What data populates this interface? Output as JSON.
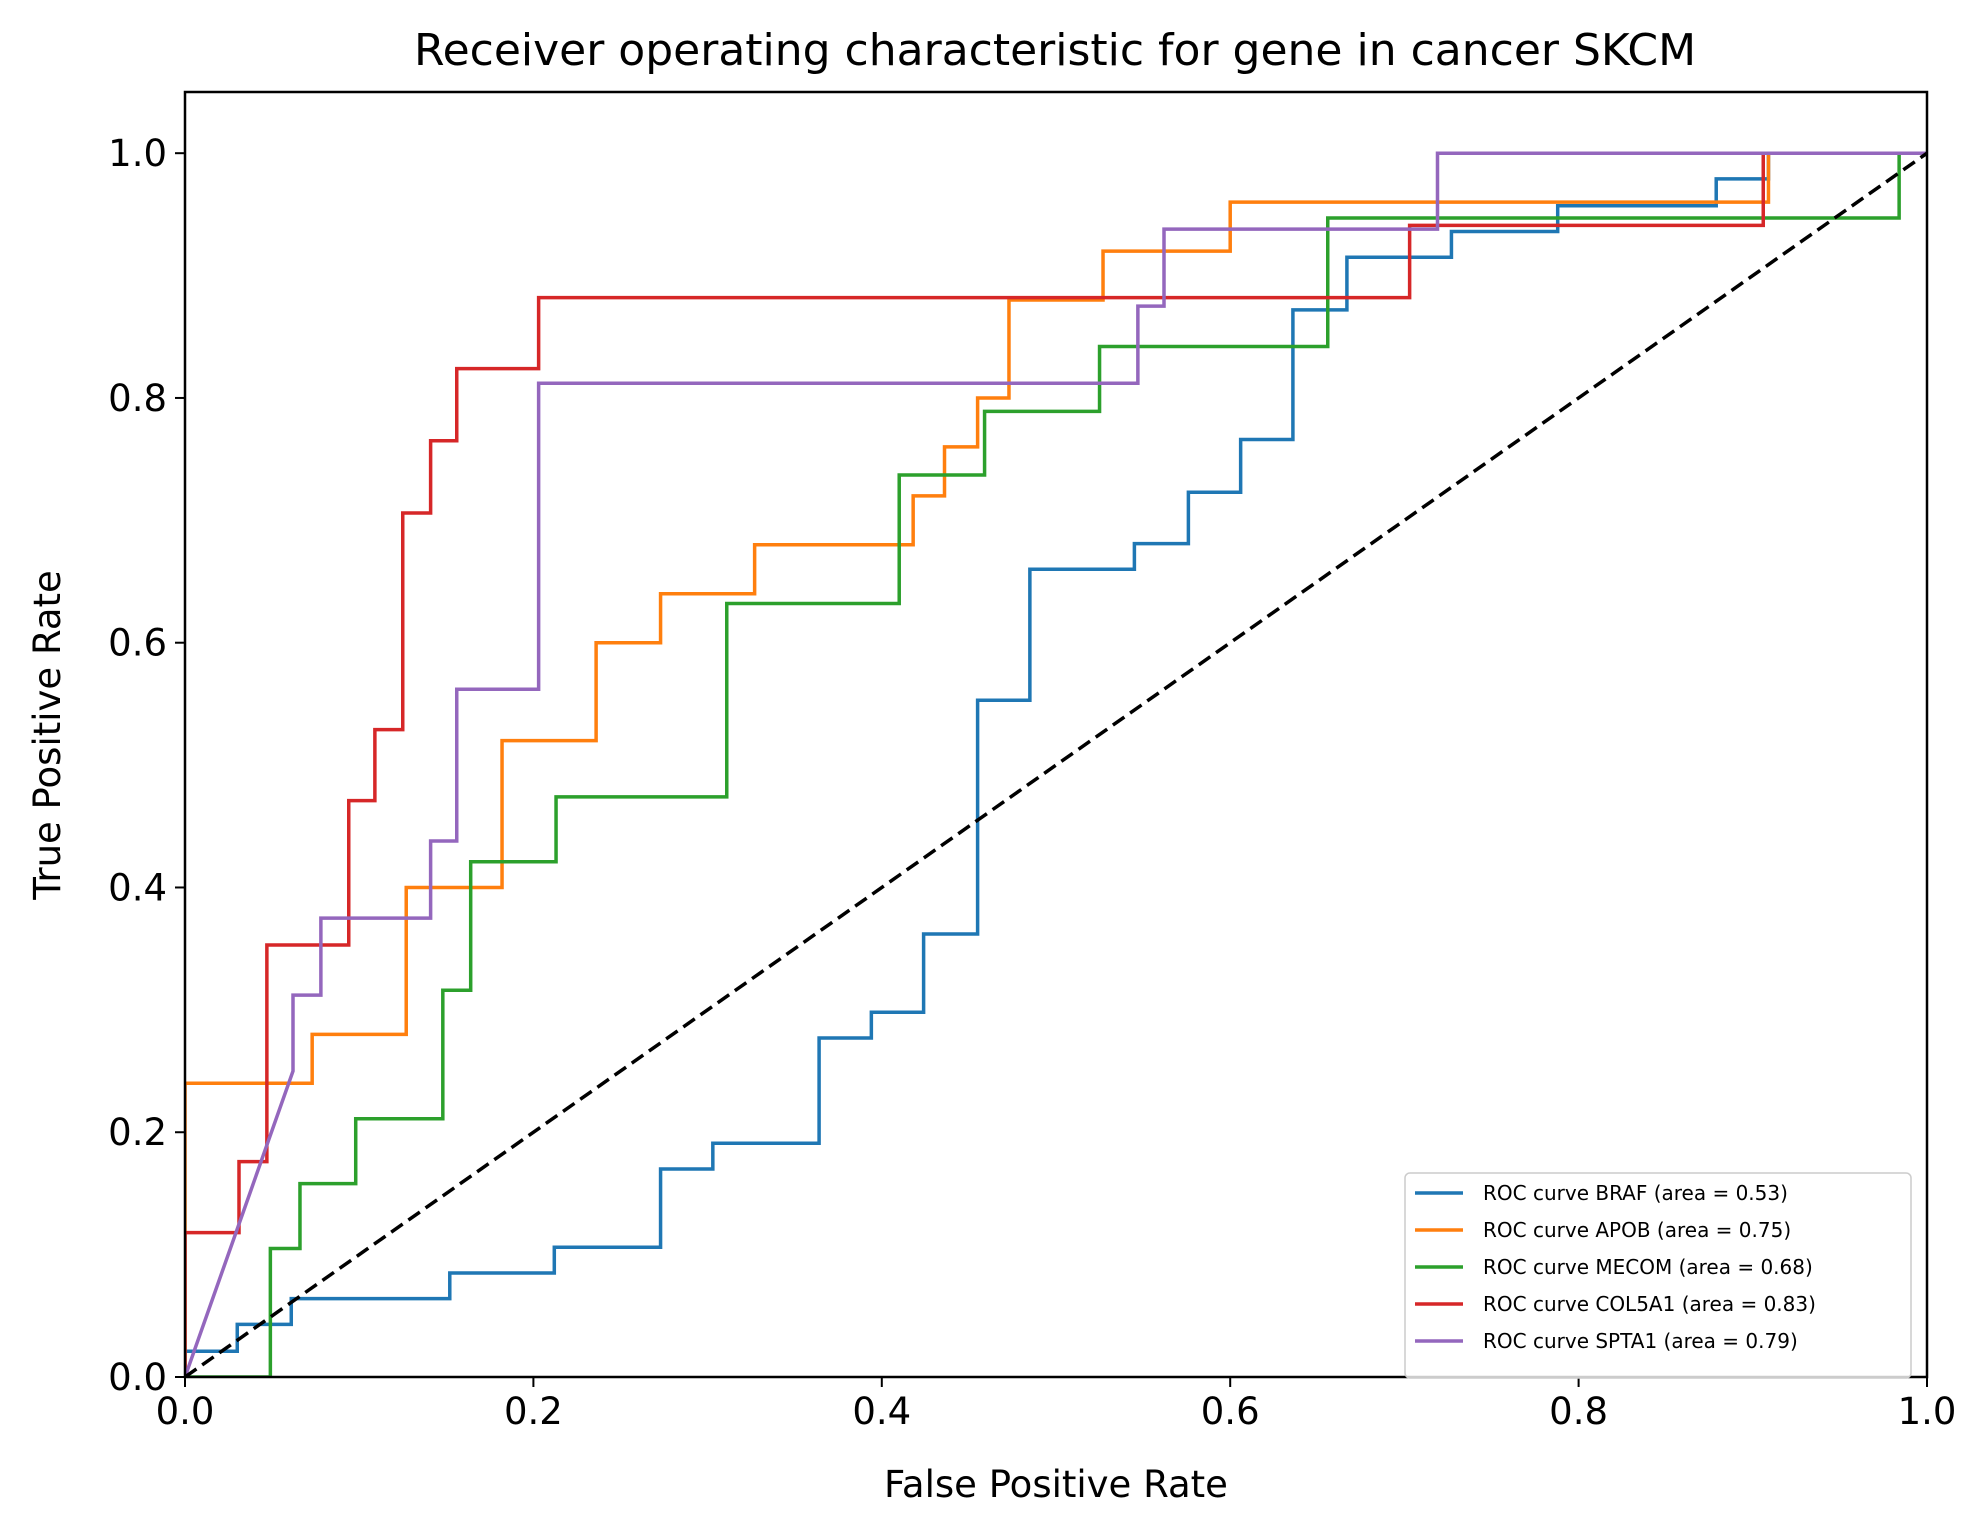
{
  "chart_data": {
    "type": "line",
    "title": "Receiver operating characteristic for gene in cancer SKCM",
    "xlabel": "False Positive Rate",
    "ylabel": "True Positive Rate",
    "xlim": [
      0.0,
      1.0
    ],
    "ylim": [
      0.0,
      1.05
    ],
    "xticks": [
      "0.0",
      "0.2",
      "0.4",
      "0.6",
      "0.8",
      "1.0"
    ],
    "yticks": [
      "0.0",
      "0.2",
      "0.4",
      "0.6",
      "0.8",
      "1.0"
    ],
    "grid": false,
    "legend_position": "lower-right",
    "series": [
      {
        "name": "ROC curve BRAF (area = 0.53)",
        "color": "#1f77b4",
        "x": [
          0.0,
          0.0,
          0.03,
          0.03,
          0.061,
          0.061,
          0.152,
          0.152,
          0.212,
          0.212,
          0.273,
          0.273,
          0.303,
          0.303,
          0.364,
          0.364,
          0.394,
          0.394,
          0.424,
          0.424,
          0.455,
          0.455,
          0.485,
          0.485,
          0.545,
          0.545,
          0.576,
          0.576,
          0.606,
          0.606,
          0.636,
          0.636,
          0.667,
          0.667,
          0.727,
          0.727,
          0.788,
          0.788,
          0.879,
          0.879,
          0.909,
          0.909,
          1.0
        ],
        "y": [
          0.0,
          0.021,
          0.021,
          0.043,
          0.043,
          0.064,
          0.064,
          0.085,
          0.085,
          0.106,
          0.106,
          0.17,
          0.17,
          0.191,
          0.191,
          0.277,
          0.277,
          0.298,
          0.298,
          0.362,
          0.362,
          0.553,
          0.553,
          0.66,
          0.66,
          0.681,
          0.681,
          0.723,
          0.723,
          0.766,
          0.766,
          0.872,
          0.872,
          0.915,
          0.915,
          0.936,
          0.936,
          0.957,
          0.957,
          0.979,
          0.979,
          1.0,
          1.0
        ]
      },
      {
        "name": "ROC curve APOB (area = 0.75)",
        "color": "#ff7f0e",
        "x": [
          0.0,
          0.0,
          0.073,
          0.073,
          0.127,
          0.127,
          0.182,
          0.182,
          0.236,
          0.236,
          0.273,
          0.273,
          0.327,
          0.327,
          0.418,
          0.418,
          0.436,
          0.436,
          0.455,
          0.455,
          0.473,
          0.473,
          0.527,
          0.527,
          0.6,
          0.6,
          0.909,
          0.909,
          1.0
        ],
        "y": [
          0.0,
          0.24,
          0.24,
          0.28,
          0.28,
          0.4,
          0.4,
          0.52,
          0.52,
          0.6,
          0.6,
          0.64,
          0.64,
          0.68,
          0.68,
          0.72,
          0.72,
          0.76,
          0.76,
          0.8,
          0.8,
          0.88,
          0.88,
          0.92,
          0.92,
          0.96,
          0.96,
          1.0,
          1.0
        ]
      },
      {
        "name": "ROC curve MECOM (area = 0.68)",
        "color": "#2ca02c",
        "x": [
          0.0,
          0.049,
          0.049,
          0.066,
          0.066,
          0.098,
          0.098,
          0.148,
          0.148,
          0.164,
          0.164,
          0.213,
          0.213,
          0.311,
          0.311,
          0.41,
          0.41,
          0.459,
          0.459,
          0.525,
          0.525,
          0.656,
          0.656,
          0.984,
          0.984,
          1.0
        ],
        "y": [
          0.0,
          0.0,
          0.105,
          0.105,
          0.158,
          0.158,
          0.211,
          0.211,
          0.316,
          0.316,
          0.421,
          0.421,
          0.474,
          0.474,
          0.632,
          0.632,
          0.737,
          0.737,
          0.789,
          0.789,
          0.842,
          0.842,
          0.947,
          0.947,
          1.0,
          1.0
        ]
      },
      {
        "name": "ROC curve COL5A1 (area = 0.83)",
        "color": "#d62728",
        "x": [
          0.0,
          0.0,
          0.031,
          0.031,
          0.047,
          0.047,
          0.094,
          0.094,
          0.109,
          0.109,
          0.125,
          0.125,
          0.141,
          0.141,
          0.156,
          0.156,
          0.203,
          0.203,
          0.703,
          0.703,
          0.906,
          0.906,
          1.0
        ],
        "y": [
          0.0,
          0.118,
          0.118,
          0.176,
          0.176,
          0.353,
          0.353,
          0.471,
          0.471,
          0.529,
          0.529,
          0.706,
          0.706,
          0.765,
          0.765,
          0.824,
          0.824,
          0.882,
          0.882,
          0.941,
          0.941,
          1.0,
          1.0
        ]
      },
      {
        "name": "ROC curve SPTA1 (area = 0.79)",
        "color": "#9467bd",
        "x": [
          0.0,
          0.062,
          0.062,
          0.078,
          0.078,
          0.141,
          0.141,
          0.156,
          0.156,
          0.203,
          0.203,
          0.547,
          0.547,
          0.562,
          0.562,
          0.719,
          0.719,
          1.0
        ],
        "y": [
          0.0,
          0.25,
          0.312,
          0.312,
          0.375,
          0.375,
          0.438,
          0.438,
          0.562,
          0.562,
          0.812,
          0.812,
          0.875,
          0.875,
          0.938,
          0.938,
          1.0,
          1.0
        ]
      }
    ],
    "reference_line": {
      "x": [
        0.0,
        1.0
      ],
      "y": [
        0.0,
        1.0
      ],
      "color": "#000000",
      "style": "dashed"
    }
  }
}
